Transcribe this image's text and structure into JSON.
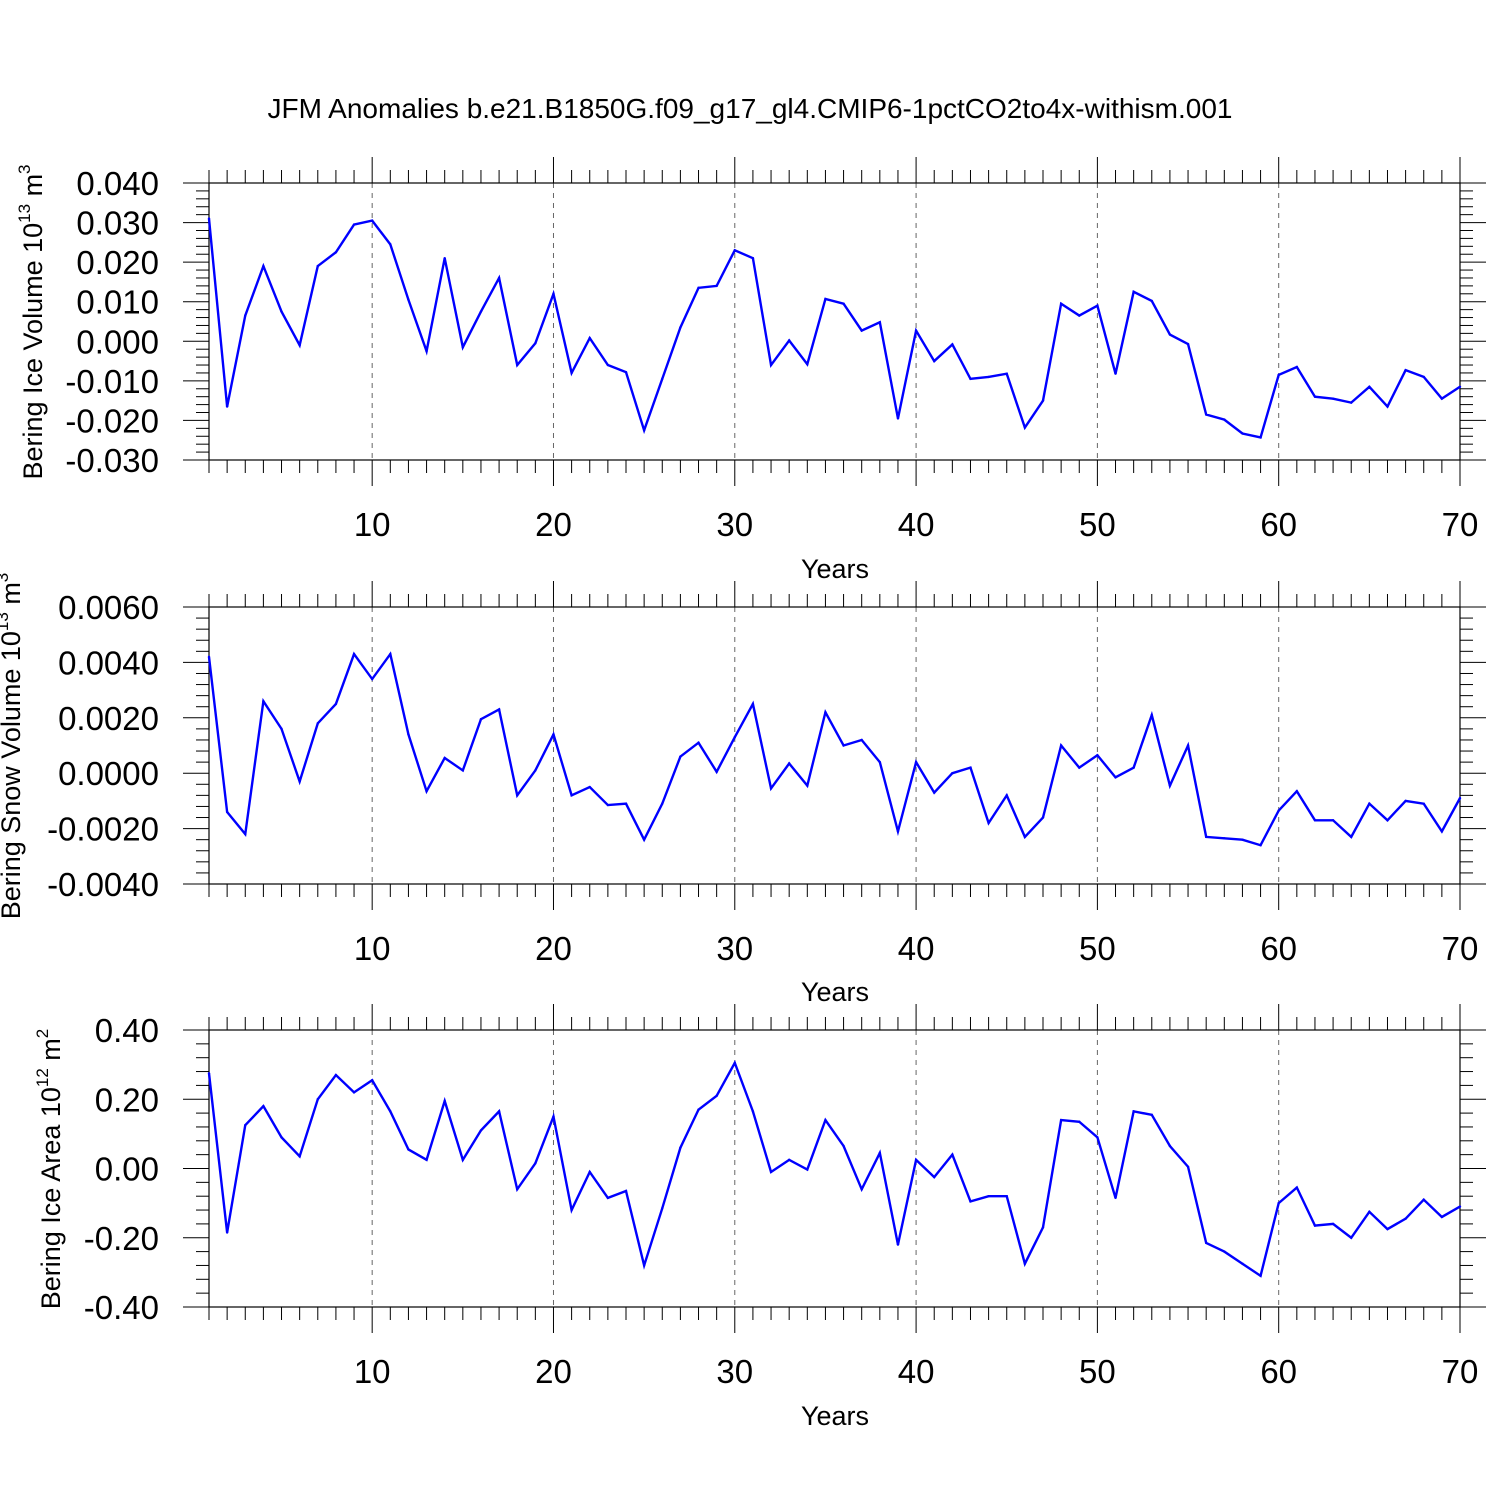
{
  "title": "JFM Anomalies b.e21.B1850G.f09_g17_gl4.CMIP6-1pctCO2to4x-withism.001",
  "colors": {
    "line": "#0000ff",
    "axis": "#000000",
    "grid": "#666666"
  },
  "chart_data": [
    {
      "type": "line",
      "ylabel": "Bering Ice Volume 10",
      "ylabel_exp": "13",
      "ylabel_unit": " m",
      "ylabel_unit_exp": "3",
      "xlabel": "Years",
      "xlim": [
        1,
        70
      ],
      "ylim": [
        -0.03,
        0.04
      ],
      "xticks": [
        10,
        20,
        30,
        40,
        50,
        60,
        70
      ],
      "xtick_labels": [
        "10",
        "20",
        "30",
        "40",
        "50",
        "60",
        "70"
      ],
      "yticks": [
        -0.03,
        -0.02,
        -0.01,
        0.0,
        0.01,
        0.02,
        0.03,
        0.04
      ],
      "ytick_labels": [
        "-0.030",
        "-0.020",
        "-0.010",
        "0.000",
        "0.010",
        "0.020",
        "0.030",
        "0.040"
      ],
      "grid": "vertical dashed at major x ticks",
      "x_start": 1,
      "values": [
        0.031,
        -0.0165,
        0.0065,
        0.019,
        0.0075,
        -0.001,
        0.019,
        0.0225,
        0.0295,
        0.0305,
        0.0245,
        0.0105,
        -0.0025,
        0.021,
        -0.0015,
        0.0075,
        0.016,
        -0.006,
        -0.0005,
        0.012,
        -0.008,
        0.0008,
        -0.006,
        -0.0078,
        -0.0225,
        -0.0095,
        0.0035,
        0.0135,
        0.014,
        0.023,
        0.021,
        -0.006,
        0.0002,
        -0.0058,
        0.0107,
        0.0095,
        0.0027,
        0.0048,
        -0.0195,
        0.0027,
        -0.005,
        -0.0008,
        -0.0095,
        -0.009,
        -0.0082,
        -0.0218,
        -0.015,
        0.0095,
        0.0065,
        0.009,
        -0.0082,
        0.0125,
        0.0102,
        0.0017,
        -0.0007,
        -0.0185,
        -0.0198,
        -0.0233,
        -0.0243,
        -0.0085,
        -0.0065,
        -0.014,
        -0.0145,
        -0.0155,
        -0.0115,
        -0.0165,
        -0.0073,
        -0.009,
        -0.0145,
        -0.0115
      ]
    },
    {
      "type": "line",
      "ylabel": "Bering Snow Volume 10",
      "ylabel_exp": "13",
      "ylabel_unit": " m",
      "ylabel_unit_exp": "3",
      "xlabel": "Years",
      "xlim": [
        1,
        70
      ],
      "ylim": [
        -0.004,
        0.006
      ],
      "xticks": [
        10,
        20,
        30,
        40,
        50,
        60,
        70
      ],
      "xtick_labels": [
        "10",
        "20",
        "30",
        "40",
        "50",
        "60",
        "70"
      ],
      "yticks": [
        -0.004,
        -0.002,
        0.0,
        0.002,
        0.004,
        0.006
      ],
      "ytick_labels": [
        "-0.0040",
        "-0.0020",
        "0.0000",
        "0.0020",
        "0.0040",
        "0.0060"
      ],
      "grid": "vertical dashed at major x ticks",
      "x_start": 1,
      "values": [
        0.0042,
        -0.0014,
        -0.0022,
        0.0026,
        0.0016,
        -0.0003,
        0.0018,
        0.0025,
        0.0043,
        0.0034,
        0.0043,
        0.0014,
        -0.00065,
        0.00055,
        0.0001,
        0.00195,
        0.0023,
        -0.0008,
        0.0001,
        0.0014,
        -0.0008,
        -0.0005,
        -0.00115,
        -0.0011,
        -0.0024,
        -0.0011,
        0.0006,
        0.0011,
        5e-05,
        0.0013,
        0.0025,
        -0.00055,
        0.00035,
        -0.00045,
        0.0022,
        0.001,
        0.0012,
        0.0004,
        -0.0021,
        0.0004,
        -0.0007,
        0.0,
        0.0002,
        -0.0018,
        -0.0008,
        -0.0023,
        -0.0016,
        0.001,
        0.0002,
        0.00065,
        -0.00015,
        0.0002,
        0.0021,
        -0.00045,
        0.001,
        -0.0023,
        -0.00235,
        -0.0024,
        -0.0026,
        -0.00135,
        -0.00065,
        -0.0017,
        -0.0017,
        -0.0023,
        -0.0011,
        -0.0017,
        -0.001,
        -0.0011,
        -0.0021,
        -0.0009
      ]
    },
    {
      "type": "line",
      "ylabel": "Bering Ice Area 10",
      "ylabel_exp": "12",
      "ylabel_unit": " m",
      "ylabel_unit_exp": "2",
      "xlabel": "Years",
      "xlim": [
        1,
        70
      ],
      "ylim": [
        -0.4,
        0.4
      ],
      "xticks": [
        10,
        20,
        30,
        40,
        50,
        60,
        70
      ],
      "xtick_labels": [
        "10",
        "20",
        "30",
        "40",
        "50",
        "60",
        "70"
      ],
      "yticks": [
        -0.4,
        -0.2,
        0.0,
        0.2,
        0.4
      ],
      "ytick_labels": [
        "-0.40",
        "-0.20",
        "0.00",
        "0.20",
        "0.40"
      ],
      "grid": "vertical dashed at major x ticks",
      "x_start": 1,
      "values": [
        0.275,
        -0.185,
        0.125,
        0.18,
        0.09,
        0.035,
        0.2,
        0.27,
        0.22,
        0.255,
        0.165,
        0.055,
        0.025,
        0.195,
        0.025,
        0.11,
        0.165,
        -0.06,
        0.015,
        0.15,
        -0.12,
        -0.01,
        -0.085,
        -0.065,
        -0.28,
        -0.115,
        0.06,
        0.17,
        0.21,
        0.305,
        0.165,
        -0.01,
        0.025,
        -0.003,
        0.14,
        0.065,
        -0.06,
        0.045,
        -0.22,
        0.025,
        -0.025,
        0.04,
        -0.095,
        -0.08,
        -0.08,
        -0.275,
        -0.17,
        0.14,
        0.135,
        0.09,
        -0.085,
        0.165,
        0.155,
        0.065,
        0.005,
        -0.215,
        -0.24,
        -0.275,
        -0.31,
        -0.1,
        -0.055,
        -0.165,
        -0.16,
        -0.2,
        -0.125,
        -0.175,
        -0.145,
        -0.09,
        -0.14,
        -0.11
      ]
    }
  ]
}
